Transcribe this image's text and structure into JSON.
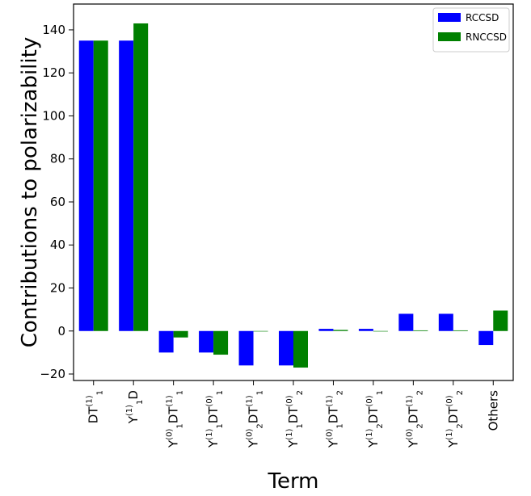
{
  "chart_data": {
    "type": "bar",
    "title": "",
    "xlabel": "Term",
    "ylabel": "Contributions to polarizability",
    "ylim": [
      -23,
      152
    ],
    "yticks": [
      -20,
      0,
      20,
      40,
      60,
      80,
      100,
      120,
      140
    ],
    "grid": false,
    "legend_position": "top-right",
    "categories": [
      {
        "base": "DT",
        "parts": [
          {
            "sup": "(1)",
            "sub": "1"
          }
        ]
      },
      {
        "base": "Y",
        "parts": [
          {
            "sup": "(1)",
            "sub": "1"
          }
        ],
        "suffix": "D"
      },
      {
        "base": "Y",
        "parts": [
          {
            "sup": "(0)",
            "sub": "1"
          }
        ],
        "mid": "DT",
        "parts2": [
          {
            "sup": "(1)",
            "sub": "1"
          }
        ]
      },
      {
        "base": "Y",
        "parts": [
          {
            "sup": "(1)",
            "sub": "1"
          }
        ],
        "mid": "DT",
        "parts2": [
          {
            "sup": "(0)",
            "sub": "1"
          }
        ]
      },
      {
        "base": "Y",
        "parts": [
          {
            "sup": "(0)",
            "sub": "2"
          }
        ],
        "mid": "DT",
        "parts2": [
          {
            "sup": "(1)",
            "sub": "1"
          }
        ]
      },
      {
        "base": "Y",
        "parts": [
          {
            "sup": "(1)",
            "sub": "1"
          }
        ],
        "mid": "DT",
        "parts2": [
          {
            "sup": "(0)",
            "sub": "2"
          }
        ]
      },
      {
        "base": "Y",
        "parts": [
          {
            "sup": "(0)",
            "sub": "1"
          }
        ],
        "mid": "DT",
        "parts2": [
          {
            "sup": "(1)",
            "sub": "2"
          }
        ]
      },
      {
        "base": "Y",
        "parts": [
          {
            "sup": "(1)",
            "sub": "2"
          }
        ],
        "mid": "DT",
        "parts2": [
          {
            "sup": "(0)",
            "sub": "1"
          }
        ]
      },
      {
        "base": "Y",
        "parts": [
          {
            "sup": "(0)",
            "sub": "2"
          }
        ],
        "mid": "DT",
        "parts2": [
          {
            "sup": "(1)",
            "sub": "2"
          }
        ]
      },
      {
        "base": "Y",
        "parts": [
          {
            "sup": "(1)",
            "sub": "2"
          }
        ],
        "mid": "DT",
        "parts2": [
          {
            "sup": "(0)",
            "sub": "2"
          }
        ]
      },
      {
        "base": "Others",
        "parts": []
      }
    ],
    "series": [
      {
        "name": "RCCSD",
        "color": "#0000ff",
        "values": [
          135,
          135,
          -10,
          -10,
          -16,
          -16,
          1,
          1,
          8,
          8,
          -6.5
        ]
      },
      {
        "name": "RNCCSD",
        "color": "#008000",
        "values": [
          135,
          143,
          -3,
          -11,
          0,
          -17,
          0.5,
          0,
          0.3,
          0.3,
          9.5
        ]
      }
    ]
  }
}
